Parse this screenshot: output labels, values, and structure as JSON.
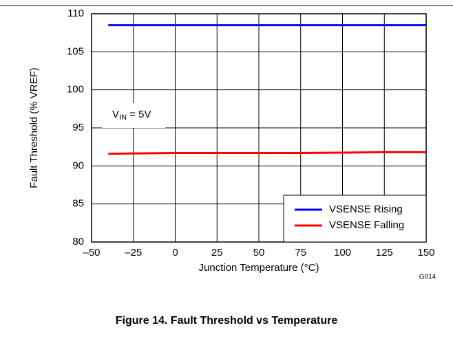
{
  "chart_data": {
    "type": "line",
    "title": "Figure 14. Fault Threshold vs Temperature",
    "x_label": "Junction Temperature (°C)",
    "y_label": "Fault Threshold (% VREF)",
    "figure_code": "G014",
    "annotation": {
      "main": "V",
      "sub": "IN",
      "rest": " = 5V"
    },
    "x": [
      -40,
      0,
      25,
      50,
      75,
      100,
      125,
      150
    ],
    "series": [
      {
        "name": "VSENSE Rising",
        "color": "#0000ff",
        "values": [
          108.5,
          108.5,
          108.5,
          108.5,
          108.5,
          108.5,
          108.5,
          108.5
        ]
      },
      {
        "name": "VSENSE Falling",
        "color": "#ff0000",
        "values": [
          91.6,
          91.7,
          91.7,
          91.7,
          91.7,
          91.75,
          91.8,
          91.8
        ]
      }
    ],
    "xlim": [
      -50,
      150
    ],
    "xticks": [
      {
        "value": -50,
        "label": "–50"
      },
      {
        "value": -25,
        "label": "–25"
      },
      0,
      25,
      50,
      75,
      100,
      125,
      150
    ],
    "ylim": [
      80,
      110
    ],
    "yticks": [
      80,
      85,
      90,
      95,
      100,
      105,
      110
    ],
    "grid": true,
    "legend": "lower right"
  }
}
